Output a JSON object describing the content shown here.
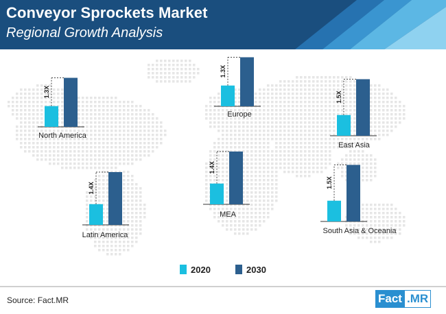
{
  "header": {
    "title": "Conveyor Sprockets Market",
    "subtitle": "Regional Growth Analysis"
  },
  "colors": {
    "header_bg": "#1a4e7e",
    "series_2020": "#1bbfe0",
    "series_2030": "#2c5f8e",
    "map_dots": "#e6e6e6"
  },
  "chart_data": {
    "type": "bar",
    "series": [
      {
        "name": "2020",
        "color": "#1bbfe0"
      },
      {
        "name": "2030",
        "color": "#2c5f8e"
      }
    ],
    "regions": [
      {
        "name": "North America",
        "growth": "1.3X",
        "v2020": 1.0,
        "v2030": 1.3
      },
      {
        "name": "Europe",
        "growth": "1.3X",
        "v2020": 1.0,
        "v2030": 1.3
      },
      {
        "name": "East Asia",
        "growth": "1.5X",
        "v2020": 1.0,
        "v2030": 1.5
      },
      {
        "name": "Latin America",
        "growth": "1.4X",
        "v2020": 1.0,
        "v2030": 1.4
      },
      {
        "name": "MEA",
        "growth": "1.4X",
        "v2020": 1.0,
        "v2030": 1.4
      },
      {
        "name": "South Asia & Oceania",
        "growth": "1.5X",
        "v2020": 1.0,
        "v2030": 1.5
      }
    ]
  },
  "legend": {
    "label_2020": "2020",
    "label_2030": "2030"
  },
  "footer": {
    "source": "Source: Fact.MR",
    "logo_part1": "Fact",
    "logo_part2": ".MR"
  }
}
